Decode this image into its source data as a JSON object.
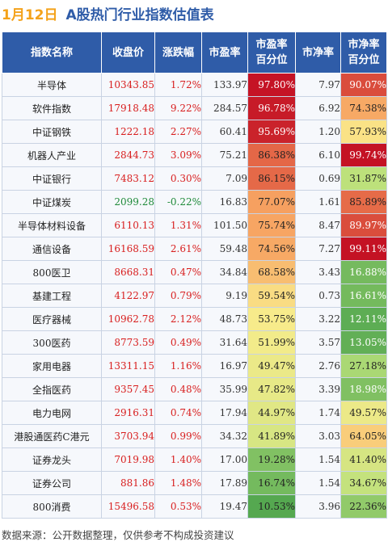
{
  "title": {
    "date": "1月12日",
    "text": "A股热门行业指数估值表"
  },
  "headers": {
    "name": "指数名称",
    "close": "收盘价",
    "change": "涨跌幅",
    "pe": "市盈率",
    "pe_pct": "市盈率\n百分位",
    "pb": "市净率",
    "pb_pct": "市净率\n百分位"
  },
  "rows": [
    {
      "name": "半导体",
      "close": "10343.85",
      "change": "1.72%",
      "pe": "133.97",
      "pe_pct": "97.80%",
      "pb": "7.97",
      "pb_pct": "90.07%"
    },
    {
      "name": "软件指数",
      "close": "17918.48",
      "change": "9.22%",
      "pe": "284.57",
      "pe_pct": "96.78%",
      "pb": "6.92",
      "pb_pct": "74.38%"
    },
    {
      "name": "中证钢铁",
      "close": "1222.18",
      "change": "2.27%",
      "pe": "60.41",
      "pe_pct": "95.69%",
      "pb": "1.20",
      "pb_pct": "57.93%"
    },
    {
      "name": "机器人产业",
      "close": "2844.73",
      "change": "3.09%",
      "pe": "75.21",
      "pe_pct": "86.38%",
      "pb": "6.10",
      "pb_pct": "99.74%"
    },
    {
      "name": "中证银行",
      "close": "7483.12",
      "change": "0.30%",
      "pe": "7.09",
      "pe_pct": "86.15%",
      "pb": "0.69",
      "pb_pct": "31.87%"
    },
    {
      "name": "中证煤炭",
      "close": "2099.28",
      "change": "-0.22%",
      "pe": "16.83",
      "pe_pct": "77.07%",
      "pb": "1.61",
      "pb_pct": "85.89%"
    },
    {
      "name": "半导体材料设备",
      "close": "6110.13",
      "change": "1.31%",
      "pe": "101.50",
      "pe_pct": "75.74%",
      "pb": "8.47",
      "pb_pct": "89.97%"
    },
    {
      "name": "通信设备",
      "close": "16168.59",
      "change": "2.61%",
      "pe": "59.48",
      "pe_pct": "74.56%",
      "pb": "7.27",
      "pb_pct": "99.11%"
    },
    {
      "name": "800医卫",
      "close": "8668.31",
      "change": "0.47%",
      "pe": "34.84",
      "pe_pct": "68.58%",
      "pb": "3.43",
      "pb_pct": "16.88%"
    },
    {
      "name": "基建工程",
      "close": "4122.97",
      "change": "0.79%",
      "pe": "9.19",
      "pe_pct": "59.54%",
      "pb": "0.73",
      "pb_pct": "16.61%"
    },
    {
      "name": "医疗器械",
      "close": "10962.78",
      "change": "2.12%",
      "pe": "48.73",
      "pe_pct": "53.75%",
      "pb": "3.22",
      "pb_pct": "12.11%"
    },
    {
      "name": "300医药",
      "close": "8773.59",
      "change": "0.49%",
      "pe": "31.64",
      "pe_pct": "51.99%",
      "pb": "3.57",
      "pb_pct": "13.05%"
    },
    {
      "name": "家用电器",
      "close": "13311.15",
      "change": "1.16%",
      "pe": "16.97",
      "pe_pct": "49.47%",
      "pb": "2.76",
      "pb_pct": "27.18%"
    },
    {
      "name": "全指医药",
      "close": "9357.45",
      "change": "0.48%",
      "pe": "35.99",
      "pe_pct": "47.82%",
      "pb": "3.39",
      "pb_pct": "18.98%"
    },
    {
      "name": "电力电网",
      "close": "2916.31",
      "change": "0.74%",
      "pe": "17.94",
      "pe_pct": "44.97%",
      "pb": "1.74",
      "pb_pct": "49.57%"
    },
    {
      "name": "港股通医药C港元",
      "close": "3703.94",
      "change": "0.99%",
      "pe": "34.32",
      "pe_pct": "41.89%",
      "pb": "3.03",
      "pb_pct": "64.05%"
    },
    {
      "name": "证券龙头",
      "close": "7019.98",
      "change": "1.40%",
      "pe": "17.00",
      "pe_pct": "19.28%",
      "pb": "1.54",
      "pb_pct": "41.40%"
    },
    {
      "name": "证券公司",
      "close": "881.86",
      "change": "1.48%",
      "pe": "17.89",
      "pe_pct": "16.74%",
      "pb": "1.54",
      "pb_pct": "34.67%"
    },
    {
      "name": "800消费",
      "close": "15496.58",
      "change": "0.53%",
      "pe": "19.47",
      "pe_pct": "10.53%",
      "pb": "3.96",
      "pb_pct": "22.36%"
    }
  ],
  "footer": "数据来源：公开数据整理，仅供参考不构成投资建议"
}
